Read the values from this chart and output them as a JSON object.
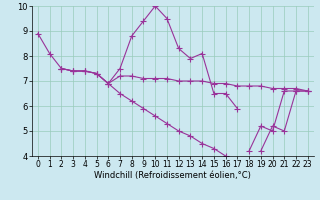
{
  "background_color": "#cce8f0",
  "grid_color": "#99ccbb",
  "line_color": "#993399",
  "marker": "+",
  "markersize": 4,
  "linewidth": 0.8,
  "xlim": [
    -0.5,
    23.5
  ],
  "ylim": [
    4,
    10
  ],
  "xlabel": "Windchill (Refroidissement éolien,°C)",
  "xlabel_fontsize": 6,
  "tick_fontsize": 5.5,
  "yticks": [
    4,
    5,
    6,
    7,
    8,
    9,
    10
  ],
  "xticks": [
    0,
    1,
    2,
    3,
    4,
    5,
    6,
    7,
    8,
    9,
    10,
    11,
    12,
    13,
    14,
    15,
    16,
    17,
    18,
    19,
    20,
    21,
    22,
    23
  ],
  "series": [
    [
      8.9,
      8.1,
      7.5,
      7.4,
      7.4,
      7.3,
      6.9,
      7.5,
      8.8,
      9.4,
      10.0,
      9.5,
      8.3,
      7.9,
      8.1,
      6.5,
      6.5,
      5.9,
      null,
      4.2,
      5.2,
      5.0,
      6.6,
      6.6
    ],
    [
      null,
      null,
      7.5,
      7.4,
      7.4,
      7.3,
      6.9,
      7.2,
      7.2,
      7.1,
      7.1,
      7.1,
      7.0,
      7.0,
      7.0,
      6.9,
      6.9,
      6.8,
      6.8,
      6.8,
      6.7,
      6.7,
      6.7,
      6.6
    ],
    [
      null,
      null,
      7.5,
      7.4,
      7.4,
      7.3,
      6.9,
      6.5,
      6.2,
      5.9,
      5.6,
      5.3,
      5.0,
      4.8,
      4.5,
      4.3,
      4.0,
      null,
      null,
      null,
      null,
      null,
      null,
      null
    ],
    [
      null,
      null,
      null,
      null,
      null,
      null,
      null,
      null,
      null,
      null,
      null,
      null,
      null,
      null,
      null,
      null,
      null,
      null,
      4.2,
      5.2,
      5.0,
      6.6,
      6.6,
      6.6
    ]
  ]
}
